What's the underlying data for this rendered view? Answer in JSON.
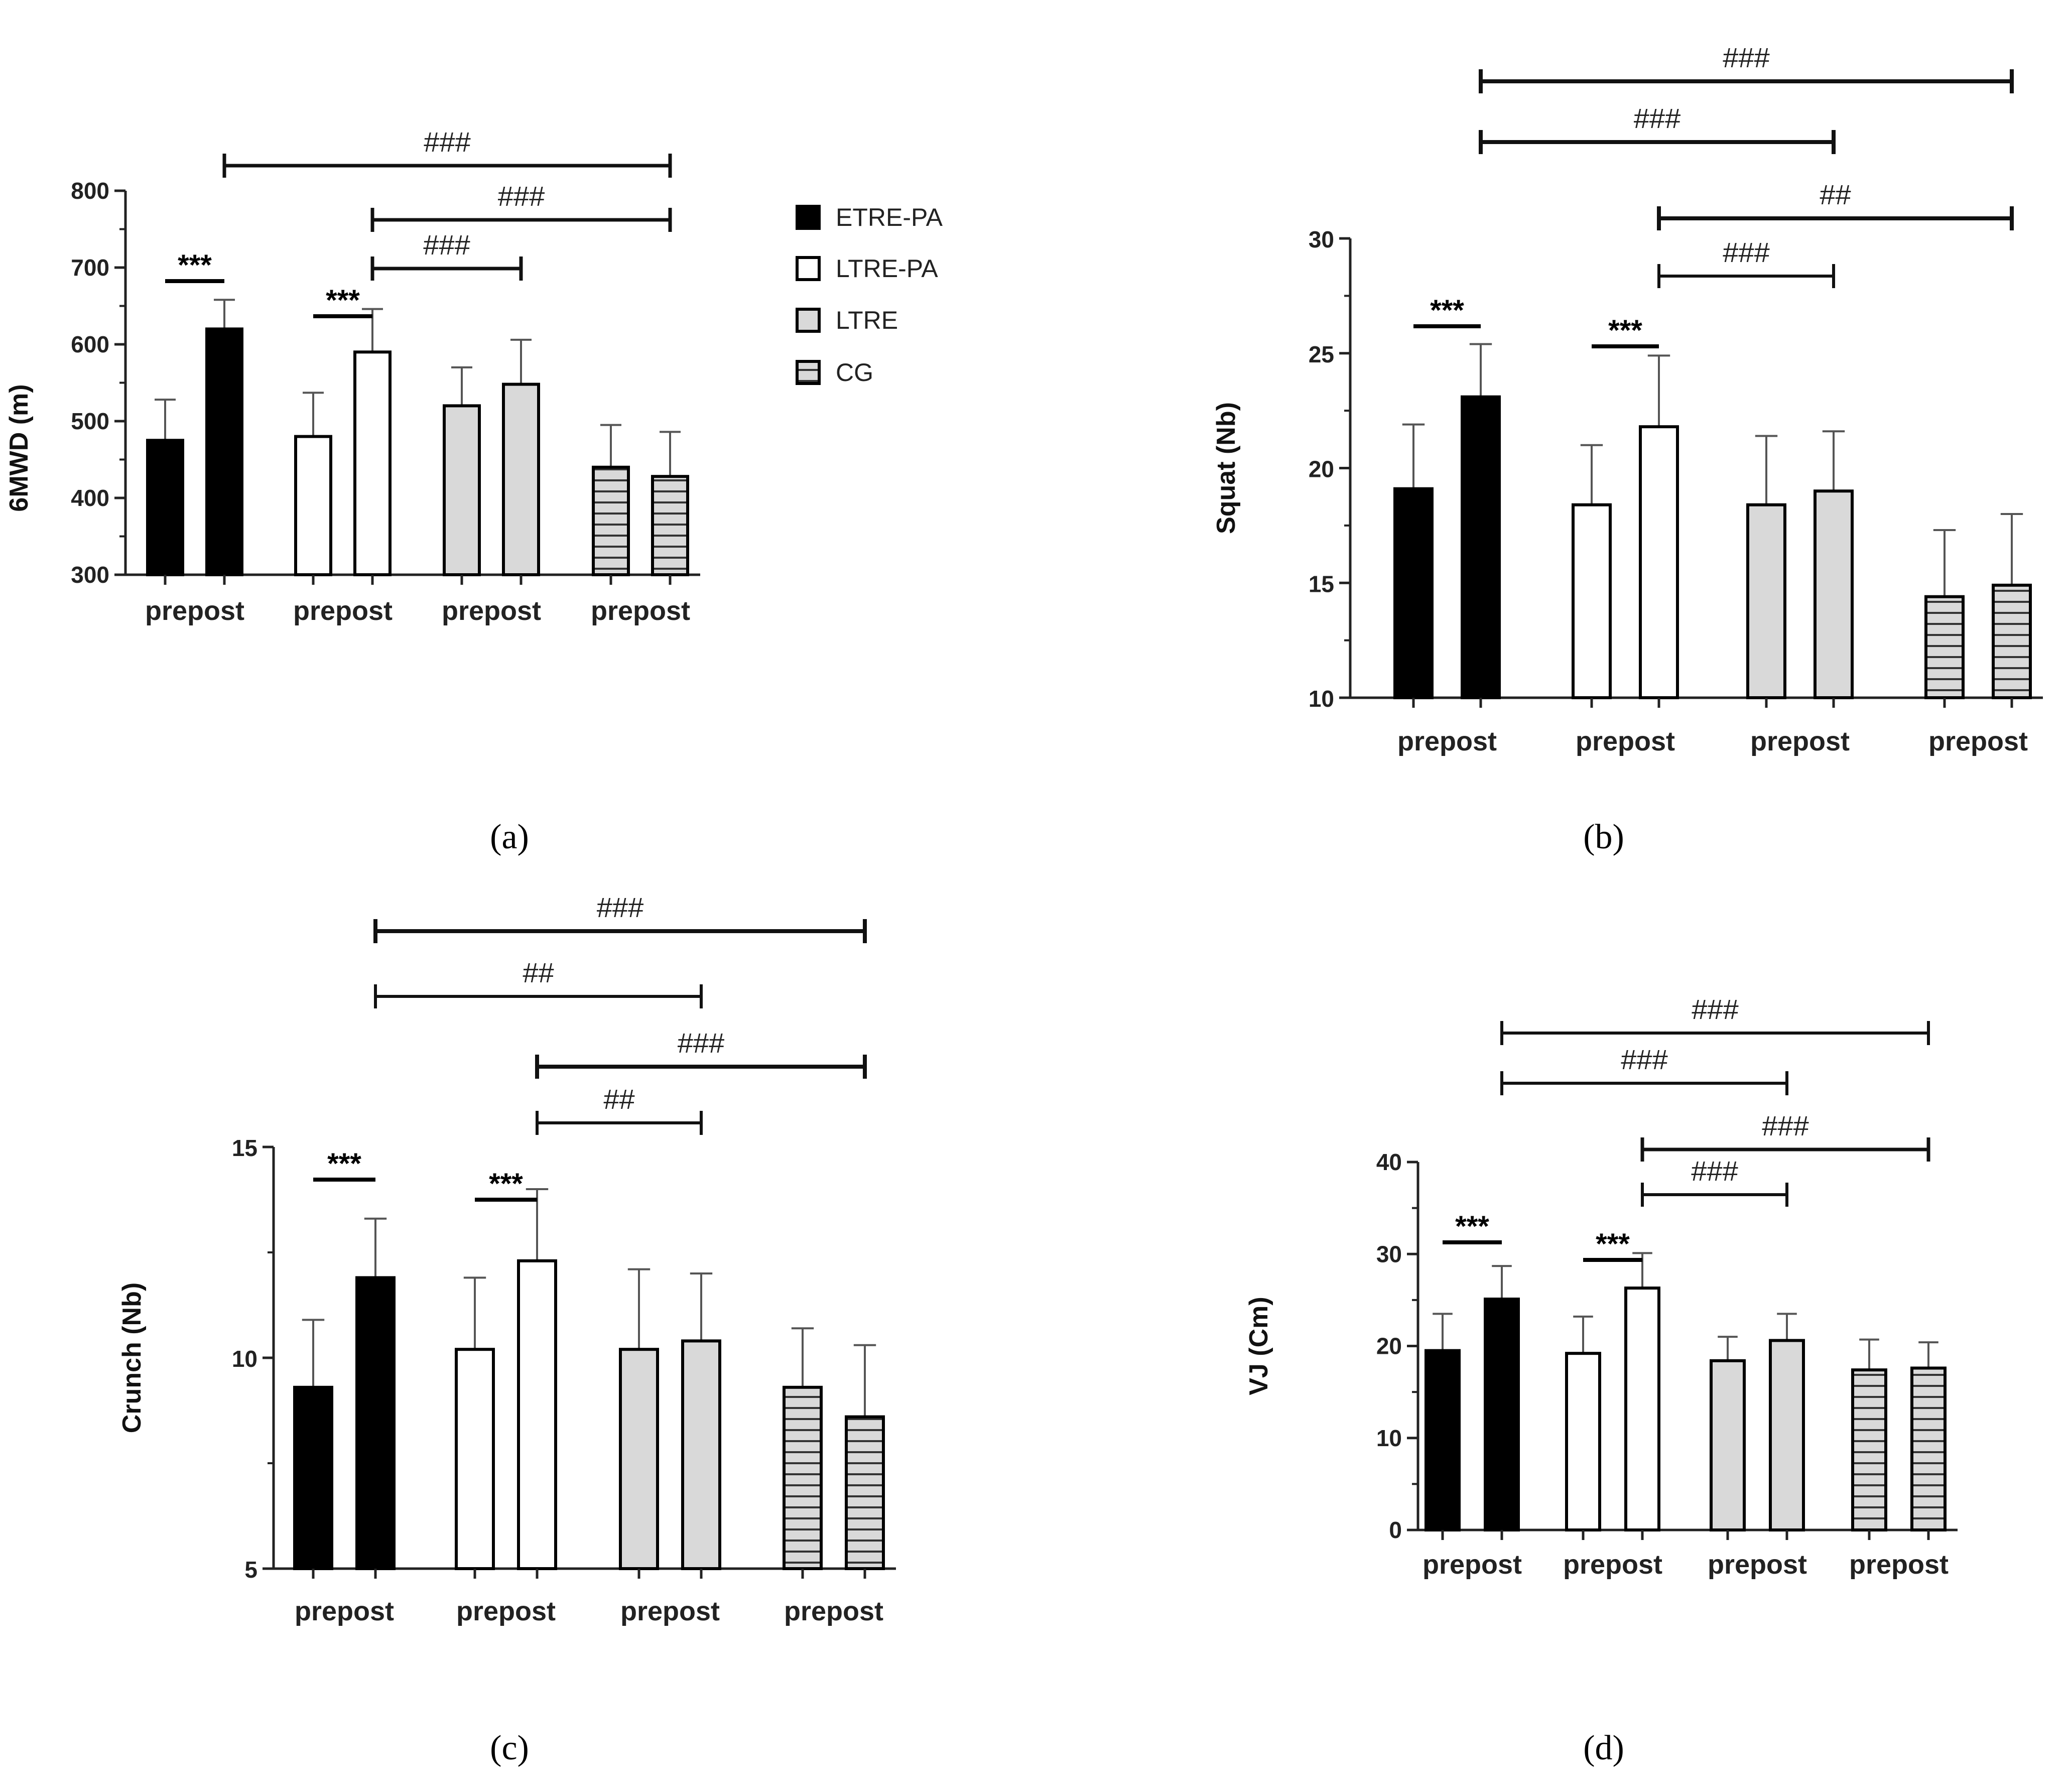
{
  "colors": {
    "ETRE-PA": "#000000",
    "LTRE-PA": "#ffffff",
    "LTRE": "#d9d9d9",
    "CG": "#d9d9d9"
  },
  "legend": {
    "items": [
      {
        "label": "ETRE-PA",
        "key": "ETRE-PA"
      },
      {
        "label": "LTRE-PA",
        "key": "LTRE-PA"
      },
      {
        "label": "LTRE",
        "key": "LTRE"
      },
      {
        "label": "CG",
        "key": "CG"
      }
    ]
  },
  "chart_data": [
    {
      "id": "a",
      "panel_label": "(a)",
      "type": "bar",
      "ylabel": "6MWD (m)",
      "ylim": [
        300,
        800
      ],
      "yticks": [
        300,
        400,
        500,
        600,
        700,
        800
      ],
      "groups": [
        "ETRE-PA",
        "LTRE-PA",
        "LTRE",
        "CG"
      ],
      "bar_labels": [
        "pre",
        "post"
      ],
      "pre": [
        475,
        480,
        520,
        440
      ],
      "post": [
        620,
        590,
        548,
        428
      ],
      "err_pre": [
        53,
        57,
        50,
        55
      ],
      "err_post": [
        38,
        56,
        58,
        58
      ],
      "within_sig": [
        {
          "group": "ETRE-PA",
          "label": "***"
        },
        {
          "group": "LTRE-PA",
          "label": "***"
        }
      ],
      "between_sig": [
        {
          "from": "ETRE-PA",
          "to": "CG",
          "label": "###",
          "bold": true
        },
        {
          "from": "LTRE-PA",
          "to": "CG",
          "label": "###",
          "bold": true
        },
        {
          "from": "LTRE-PA",
          "to": "LTRE",
          "label": "###",
          "bold": true
        }
      ]
    },
    {
      "id": "b",
      "panel_label": "(b)",
      "type": "bar",
      "ylabel": "Squat (Nb)",
      "ylim": [
        10,
        30
      ],
      "yticks": [
        10,
        15,
        20,
        25,
        30
      ],
      "groups": [
        "ETRE-PA",
        "LTRE-PA",
        "LTRE",
        "CG"
      ],
      "bar_labels": [
        "pre",
        "post"
      ],
      "pre": [
        19.1,
        18.4,
        18.4,
        14.4
      ],
      "post": [
        23.1,
        21.8,
        19.0,
        14.9
      ],
      "err_pre": [
        2.8,
        2.6,
        3.0,
        2.9
      ],
      "err_post": [
        2.3,
        3.1,
        2.6,
        3.1
      ],
      "within_sig": [
        {
          "group": "ETRE-PA",
          "label": "***"
        },
        {
          "group": "LTRE-PA",
          "label": "***"
        }
      ],
      "between_sig": [
        {
          "from": "ETRE-PA",
          "to": "CG",
          "label": "###",
          "bold": true
        },
        {
          "from": "ETRE-PA",
          "to": "LTRE",
          "label": "###",
          "bold": true
        },
        {
          "from": "LTRE-PA",
          "to": "CG",
          "label": "##",
          "bold": true
        },
        {
          "from": "LTRE-PA",
          "to": "LTRE",
          "label": "###",
          "bold": false
        }
      ]
    },
    {
      "id": "c",
      "panel_label": "(c)",
      "type": "bar",
      "ylabel": "Crunch (Nb)",
      "ylim": [
        5,
        15
      ],
      "yticks": [
        5,
        10,
        15
      ],
      "groups": [
        "ETRE-PA",
        "LTRE-PA",
        "LTRE",
        "CG"
      ],
      "bar_labels": [
        "pre",
        "post"
      ],
      "pre": [
        9.3,
        10.2,
        10.2,
        9.3
      ],
      "post": [
        11.9,
        12.3,
        10.4,
        8.6
      ],
      "err_pre": [
        1.6,
        1.7,
        1.9,
        1.4
      ],
      "err_post": [
        1.4,
        1.7,
        1.6,
        1.7
      ],
      "within_sig": [
        {
          "group": "ETRE-PA",
          "label": "***"
        },
        {
          "group": "LTRE-PA",
          "label": "***"
        }
      ],
      "between_sig": [
        {
          "from": "ETRE-PA",
          "to": "CG",
          "label": "###",
          "bold": true
        },
        {
          "from": "ETRE-PA",
          "to": "LTRE",
          "label": "##",
          "bold": false
        },
        {
          "from": "LTRE-PA",
          "to": "CG",
          "label": "###",
          "bold": true
        },
        {
          "from": "LTRE-PA",
          "to": "LTRE",
          "label": "##",
          "bold": false
        }
      ]
    },
    {
      "id": "d",
      "panel_label": "(d)",
      "type": "bar",
      "ylabel": "VJ (Cm)",
      "ylim": [
        0,
        40
      ],
      "yticks": [
        0,
        10,
        20,
        30,
        40
      ],
      "groups": [
        "ETRE-PA",
        "LTRE-PA",
        "LTRE",
        "CG"
      ],
      "bar_labels": [
        "pre",
        "post"
      ],
      "pre": [
        19.5,
        19.2,
        18.4,
        17.4
      ],
      "post": [
        25.1,
        26.3,
        20.6,
        17.6
      ],
      "err_pre": [
        4.0,
        4.0,
        2.6,
        3.3
      ],
      "err_post": [
        3.6,
        3.8,
        2.9,
        2.8
      ],
      "within_sig": [
        {
          "group": "ETRE-PA",
          "label": "***"
        },
        {
          "group": "LTRE-PA",
          "label": "***"
        }
      ],
      "between_sig": [
        {
          "from": "ETRE-PA",
          "to": "CG",
          "label": "###",
          "bold": false
        },
        {
          "from": "ETRE-PA",
          "to": "LTRE",
          "label": "###",
          "bold": false
        },
        {
          "from": "LTRE-PA",
          "to": "CG",
          "label": "###",
          "bold": true
        },
        {
          "from": "LTRE-PA",
          "to": "LTRE",
          "label": "###",
          "bold": false
        }
      ]
    }
  ]
}
